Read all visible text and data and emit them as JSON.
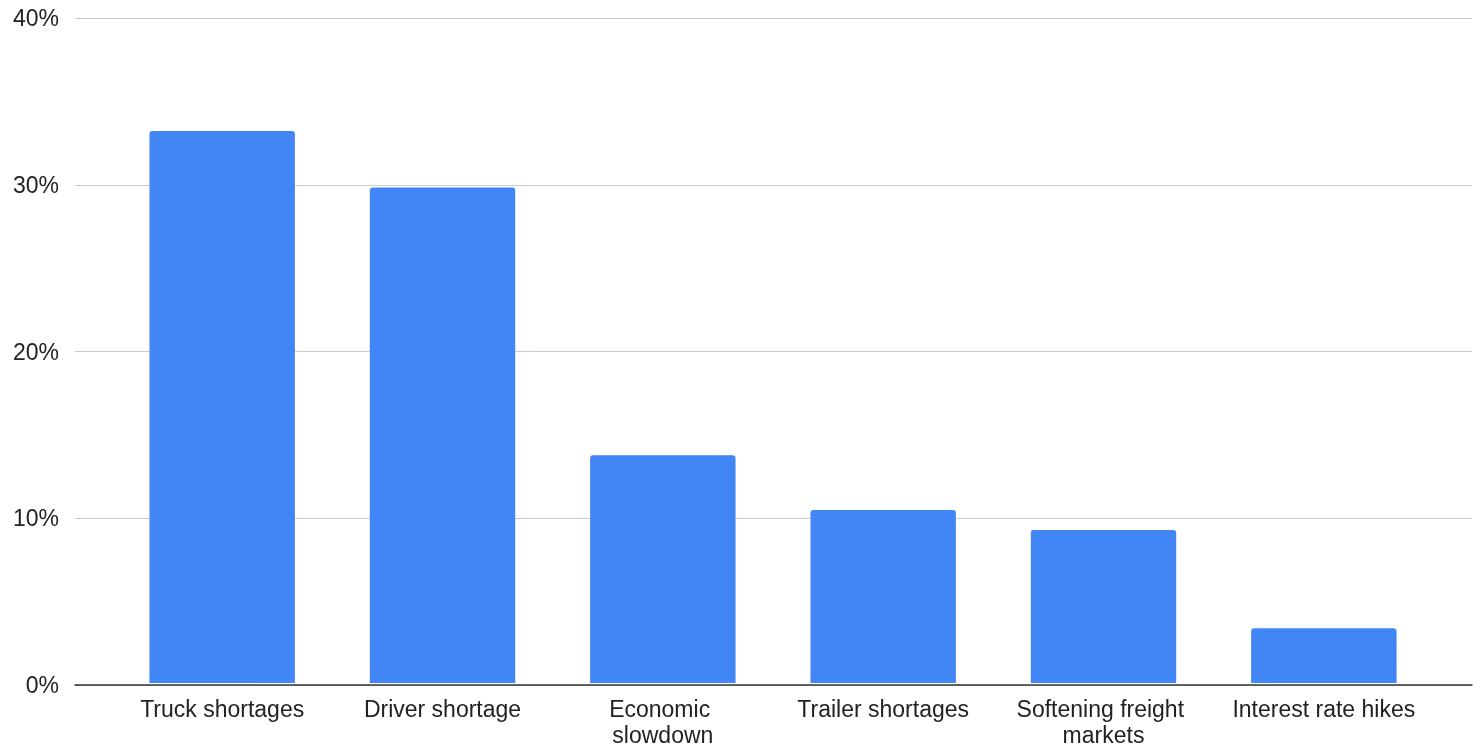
{
  "chart_data": {
    "type": "bar",
    "categories": [
      "Truck shortages",
      "Driver shortage",
      "Economic slowdown",
      "Trailer shortages",
      "Softening freight markets",
      "Interest rate hikes"
    ],
    "values": [
      33.2,
      29.8,
      13.7,
      10.4,
      9.2,
      3.3
    ],
    "color": "#4285f4",
    "ylim": [
      0,
      40
    ],
    "yticks": [
      {
        "value": 0,
        "label": "0%"
      },
      {
        "value": 10,
        "label": "10%"
      },
      {
        "value": 20,
        "label": "20%"
      },
      {
        "value": 30,
        "label": "30%"
      },
      {
        "value": 40,
        "label": "40%"
      }
    ],
    "grid": "y"
  }
}
